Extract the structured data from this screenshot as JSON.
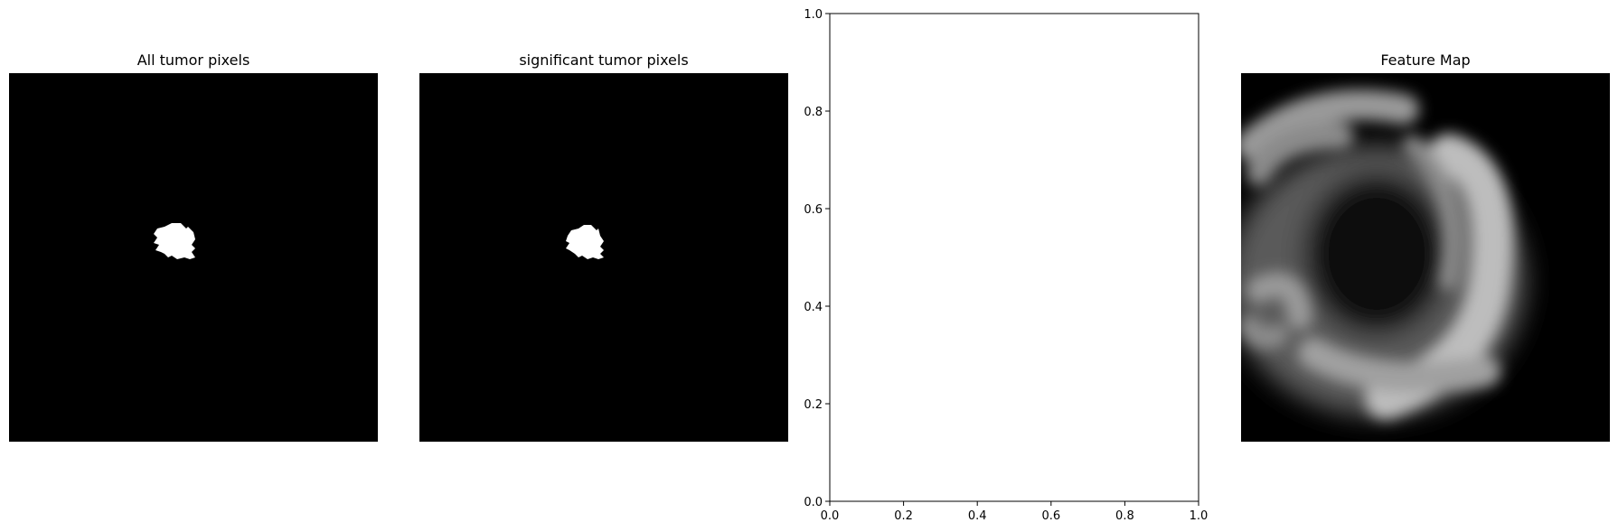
{
  "panels": {
    "all_tumor": {
      "title": "All tumor pixels"
    },
    "significant_tumor": {
      "title": "significant tumor pixels"
    },
    "feature_map": {
      "title": "Feature Map"
    }
  },
  "chart_data": {
    "type": "scatter",
    "title": "",
    "xlabel": "",
    "ylabel": "",
    "xlim": [
      0.0,
      1.0
    ],
    "ylim": [
      0.0,
      1.0
    ],
    "xticks": [
      "0.0",
      "0.2",
      "0.4",
      "0.6",
      "0.8",
      "1.0"
    ],
    "yticks": [
      "0.0",
      "0.2",
      "0.4",
      "0.6",
      "0.8",
      "1.0"
    ],
    "series": [],
    "grid": false
  }
}
